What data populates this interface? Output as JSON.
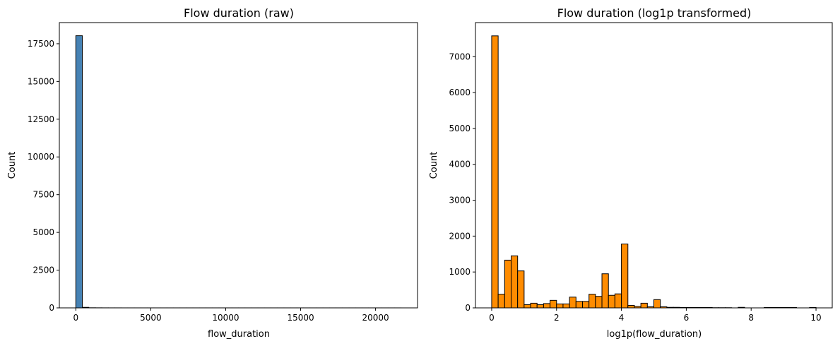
{
  "chart_data": [
    {
      "type": "bar",
      "title": "Flow duration (raw)",
      "xlabel": "flow_duration",
      "ylabel": "Count",
      "xlim": [
        -1100,
        22800
      ],
      "ylim": [
        0,
        18900
      ],
      "xticks": [
        0,
        5000,
        10000,
        15000,
        20000
      ],
      "yticks": [
        0,
        2500,
        5000,
        7500,
        10000,
        12500,
        15000,
        17500
      ],
      "bin_start": 0,
      "bin_width": 434,
      "values": [
        18030,
        35,
        8,
        5,
        3,
        2,
        2,
        1,
        1,
        1,
        1,
        1,
        1,
        1,
        1,
        1,
        1,
        1,
        1,
        1,
        1,
        1,
        1,
        1,
        1,
        1,
        1,
        1,
        1,
        1,
        1,
        1,
        1,
        1,
        1,
        1,
        1,
        1,
        1,
        1,
        1,
        1,
        1,
        1,
        1,
        1,
        1,
        1,
        1,
        1
      ],
      "color": "#4682b4",
      "edgecolor": "#000000",
      "grid": false
    },
    {
      "type": "bar",
      "title": "Flow duration (log1p transformed)",
      "xlabel": "log1p(flow_duration)",
      "ylabel": "Count",
      "xlim": [
        -0.5,
        10.5
      ],
      "ylim": [
        0,
        7950
      ],
      "xticks": [
        0,
        2,
        4,
        6,
        8,
        10
      ],
      "yticks": [
        0,
        1000,
        2000,
        3000,
        4000,
        5000,
        6000,
        7000
      ],
      "bin_start": 0,
      "bin_width": 0.2,
      "values": [
        7580,
        380,
        1330,
        1450,
        1030,
        90,
        130,
        90,
        120,
        210,
        110,
        110,
        300,
        180,
        180,
        380,
        320,
        950,
        350,
        390,
        1780,
        70,
        40,
        130,
        30,
        230,
        30,
        15,
        15,
        10,
        10,
        10,
        10,
        10,
        5,
        5,
        5,
        0,
        15,
        0,
        0,
        0,
        10,
        10,
        10,
        10,
        10,
        0,
        0,
        10
      ],
      "color": "#ff8c00",
      "edgecolor": "#000000",
      "grid": false
    }
  ]
}
